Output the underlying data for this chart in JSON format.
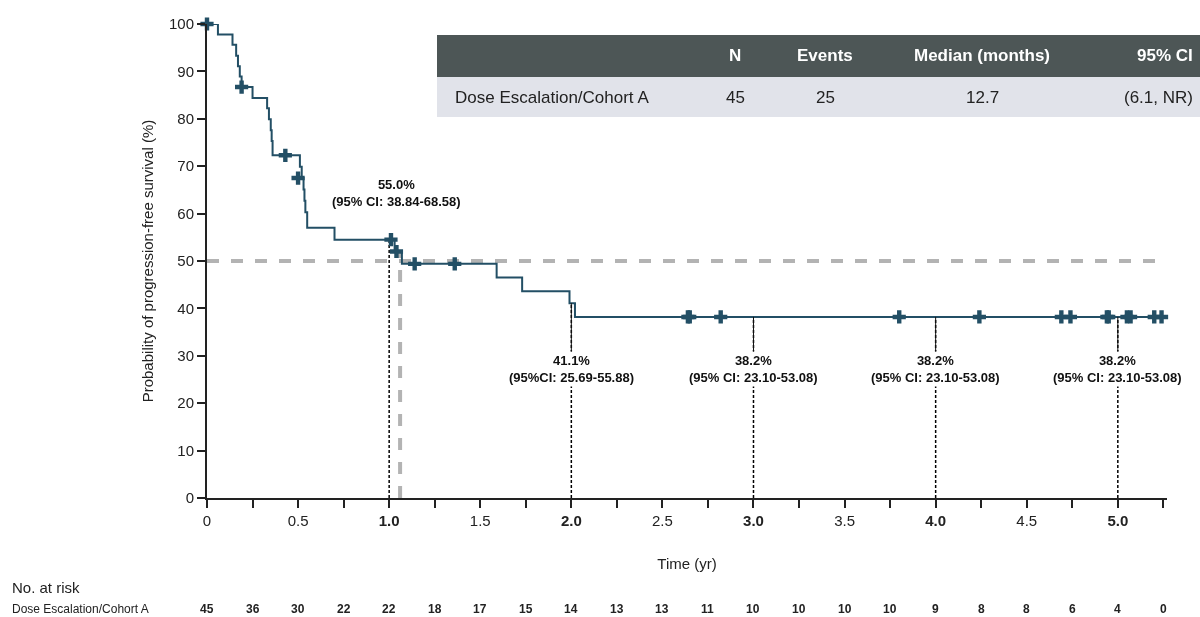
{
  "chart_data": {
    "type": "step",
    "xlabel": "Time (yr)",
    "ylabel": "Probability of progression-free survival (%)",
    "xlim": [
      0,
      5.27
    ],
    "ylim": [
      0,
      100
    ],
    "xticks": [
      0,
      {
        "value": 0.25,
        "label": null
      },
      0.5,
      {
        "value": 0.75,
        "label": null
      },
      {
        "value": 1,
        "label": "1.0"
      },
      {
        "value": 1.25,
        "label": null
      },
      1.5,
      {
        "value": 1.75,
        "label": null
      },
      {
        "value": 2,
        "label": "2.0"
      },
      {
        "value": 2.25,
        "label": null
      },
      2.5,
      {
        "value": 2.75,
        "label": null
      },
      {
        "value": 3,
        "label": "3.0"
      },
      {
        "value": 3.25,
        "label": null
      },
      3.5,
      {
        "value": 3.75,
        "label": null
      },
      {
        "value": 4,
        "label": "4.0"
      },
      {
        "value": 4.25,
        "label": null
      },
      4.5,
      {
        "value": 4.75,
        "label": null
      },
      {
        "value": 5,
        "label": "5.0"
      },
      {
        "value": 5.25,
        "label": null
      }
    ],
    "yticks": [
      0,
      10,
      20,
      30,
      40,
      50,
      60,
      70,
      80,
      90,
      100
    ],
    "grid": false,
    "series": [
      {
        "color": "#234f65",
        "x": [
          0,
          0.06,
          0.14,
          0.16,
          0.17,
          0.18,
          0.19,
          0.25,
          0.33,
          0.34,
          0.35,
          0.355,
          0.36,
          0.51,
          0.52,
          0.53,
          0.535,
          0.54,
          0.55,
          0.7,
          1.03,
          1.07,
          1.59,
          1.73,
          1.99,
          2.02,
          5.25
        ],
        "values": [
          100,
          97.8,
          95.6,
          93.3,
          91.1,
          88.9,
          86.7,
          84.4,
          82.2,
          79.9,
          77.6,
          75.3,
          72.3,
          69.9,
          67.5,
          65.1,
          62.7,
          60.3,
          57.0,
          54.5,
          52.0,
          49.4,
          46.5,
          43.6,
          41.1,
          38.2,
          38.2
        ]
      },
      {
        "type": "scatter",
        "marker": "cross",
        "color": "#234f65",
        "x": [
          0,
          0.19,
          0.43,
          0.5,
          1.01,
          1.04,
          1.14,
          1.36,
          2.64,
          2.65,
          2.82,
          3.8,
          4.24,
          4.69,
          4.74,
          4.94,
          4.95,
          5.05,
          5.07,
          5.2,
          5.24
        ],
        "values": [
          100,
          86.7,
          72.3,
          67.5,
          54.5,
          52.0,
          49.4,
          49.4,
          38.2,
          38.2,
          38.2,
          38.2,
          38.2,
          38.2,
          38.2,
          38.2,
          38.2,
          38.2,
          38.2,
          38.2,
          38.2
        ]
      }
    ],
    "ref_lines": [
      {
        "axis": "y",
        "value": 50,
        "color": "#b3b3b3",
        "line_style": "dashed"
      },
      {
        "axis": "x",
        "value": 1.06,
        "color": "#b3b3b3",
        "line_style": "dashed"
      },
      {
        "axis": "x",
        "value": 1.0,
        "color": "#000000",
        "line_style": "dashed"
      },
      {
        "axis": "x",
        "value": 2.0,
        "color": "#000000",
        "line_style": "dashed"
      },
      {
        "axis": "x",
        "value": 3.0,
        "color": "#000000",
        "line_style": "dashed"
      },
      {
        "axis": "x",
        "value": 4.0,
        "color": "#000000",
        "line_style": "dashed"
      },
      {
        "axis": "x",
        "value": 5.0,
        "color": "#000000",
        "line_style": "dashed"
      }
    ],
    "annotations": [
      "N",
      "Events",
      "Median (months)",
      "95% CI",
      "Dose Escalation/Cohort A",
      "45",
      "25",
      "12.7",
      "(6.1, NR)",
      "No. at risk",
      "Dose Escalation/Cohort A",
      {
        "text": "55.0%\n(95% CI: 38.84-68.58)",
        "x": 1.0,
        "y": 55.0
      },
      {
        "text": "41.1%\n(95%CI: 25.69-55.88)",
        "x": 2.0,
        "y": 41.1
      },
      {
        "text": "38.2%\n(95% CI: 23.10-53.08)",
        "x": 3.0,
        "y": 38.2
      },
      {
        "text": "38.2%\n(95% CI: 23.10-53.08)",
        "x": 4.0,
        "y": 38.2
      },
      {
        "text": "38.2%\n(95% CI: 23.10-53.08)",
        "x": 5.0,
        "y": 38.2
      },
      "45",
      "36",
      "30",
      "22",
      "22",
      "18",
      "17",
      "15",
      "14",
      "13",
      "13",
      "11",
      "10",
      "10",
      "10",
      "10",
      "9",
      "8",
      "8",
      "6",
      "4",
      "0"
    ]
  }
}
